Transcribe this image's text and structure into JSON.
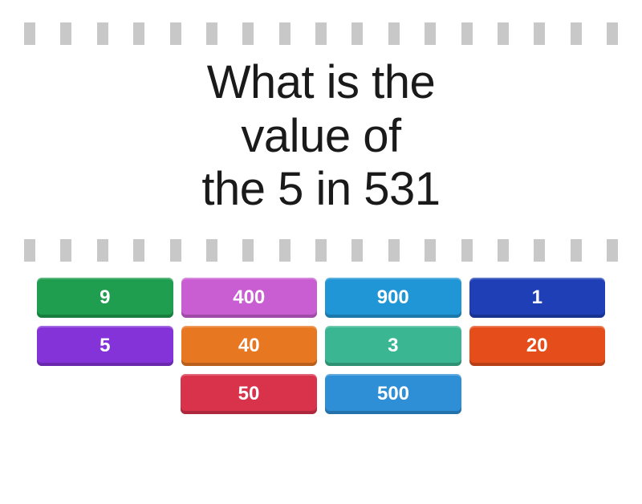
{
  "question": {
    "line1": "What is the",
    "line2": "value of",
    "line3": "the 5 in 531",
    "fontsize": 58,
    "color": "#1a1a1a"
  },
  "dashes": {
    "count": 17,
    "color": "#c8c8c8",
    "width": 14,
    "height": 28
  },
  "answers": {
    "button_width": 170,
    "button_height": 50,
    "fontsize": 24,
    "text_color": "#ffffff",
    "rows": [
      [
        {
          "label": "9",
          "color": "#1e9e4e"
        },
        {
          "label": "400",
          "color": "#c85ed1"
        },
        {
          "label": "900",
          "color": "#2196d6"
        },
        {
          "label": "1",
          "color": "#1e3fb5"
        }
      ],
      [
        {
          "label": "5",
          "color": "#8433d9"
        },
        {
          "label": "40",
          "color": "#e87722"
        },
        {
          "label": "3",
          "color": "#3bb692"
        },
        {
          "label": "20",
          "color": "#e54e1b"
        }
      ],
      [
        {
          "label": "50",
          "color": "#d9334c"
        },
        {
          "label": "500",
          "color": "#2e8fd6"
        }
      ]
    ]
  },
  "background_color": "#ffffff"
}
